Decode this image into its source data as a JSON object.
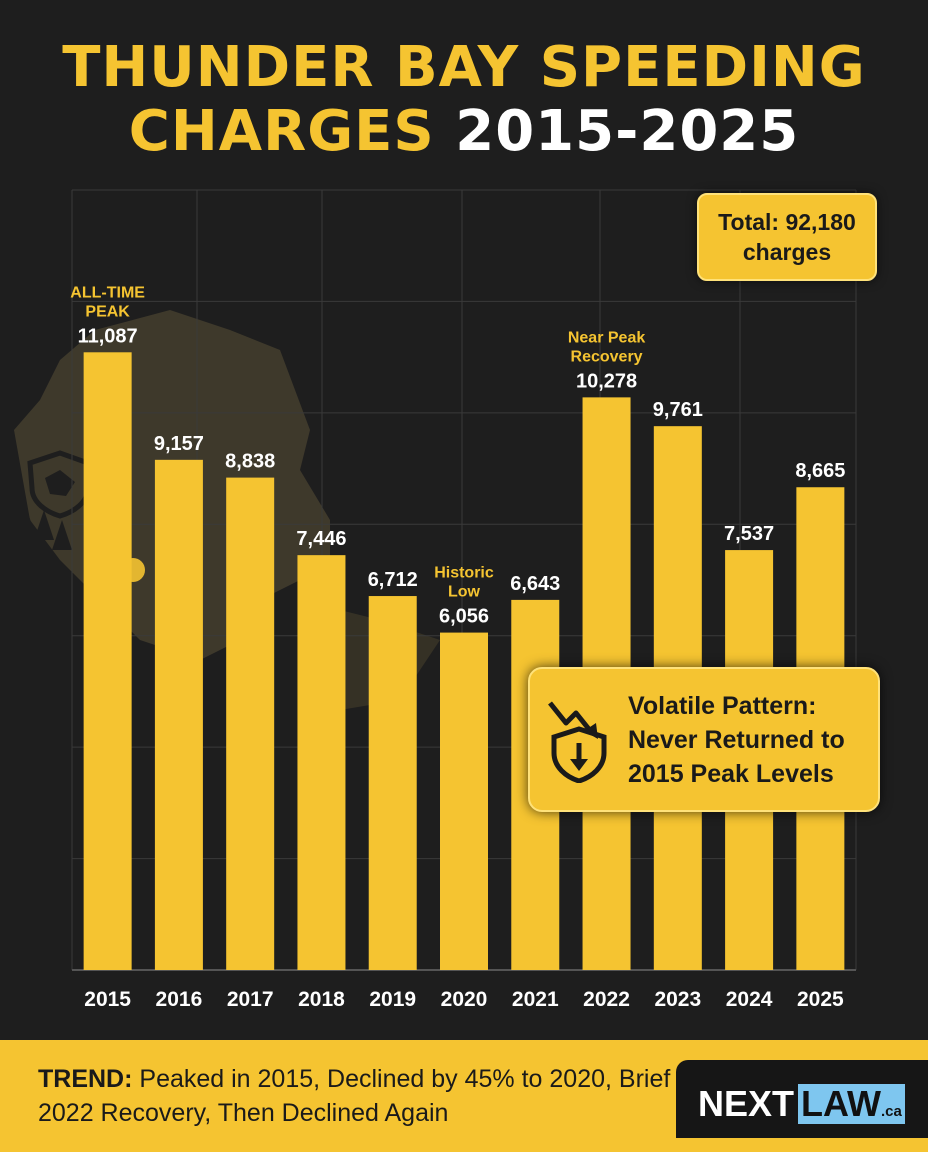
{
  "title": {
    "line1": "THUNDER BAY SPEEDING",
    "line2_accent": "CHARGES",
    "line2_years": "2015-2025"
  },
  "chart_data": {
    "type": "bar",
    "categories": [
      "2015",
      "2016",
      "2017",
      "2018",
      "2019",
      "2020",
      "2021",
      "2022",
      "2023",
      "2024",
      "2025"
    ],
    "values": [
      11087,
      9157,
      8838,
      7446,
      6712,
      6056,
      6643,
      10278,
      9761,
      7537,
      8665
    ],
    "value_labels": [
      "11,087",
      "9,157",
      "8,838",
      "7,446",
      "6,712",
      "6,056",
      "6,643",
      "10,278",
      "9,761",
      "7,537",
      "8,665"
    ],
    "ylim": [
      0,
      14000
    ],
    "annotations": [
      {
        "category": "2015",
        "lines": [
          "ALL-TIME",
          "PEAK"
        ]
      },
      {
        "category": "2020",
        "lines": [
          "Historic",
          "Low"
        ]
      },
      {
        "category": "2022",
        "lines": [
          "Near Peak",
          "Recovery"
        ]
      }
    ],
    "grid": true,
    "colors": {
      "bar": "#f5c431",
      "background": "#1e1e1e",
      "annotation": "#f5c431"
    }
  },
  "total_callout": {
    "text": "Total: 92,180 charges"
  },
  "pattern_callout": {
    "text": "Volatile Pattern: Never Returned to 2015 Peak Levels",
    "icon": "shield-down-arrow-icon"
  },
  "trend": {
    "label": "TREND:",
    "text": "Peaked in 2015, Declined by 45% to 2020, Brief 2022 Recovery, Then Declined Again"
  },
  "logo": {
    "part1": "NEXT",
    "part2": "LAW",
    "suffix": ".ca"
  }
}
